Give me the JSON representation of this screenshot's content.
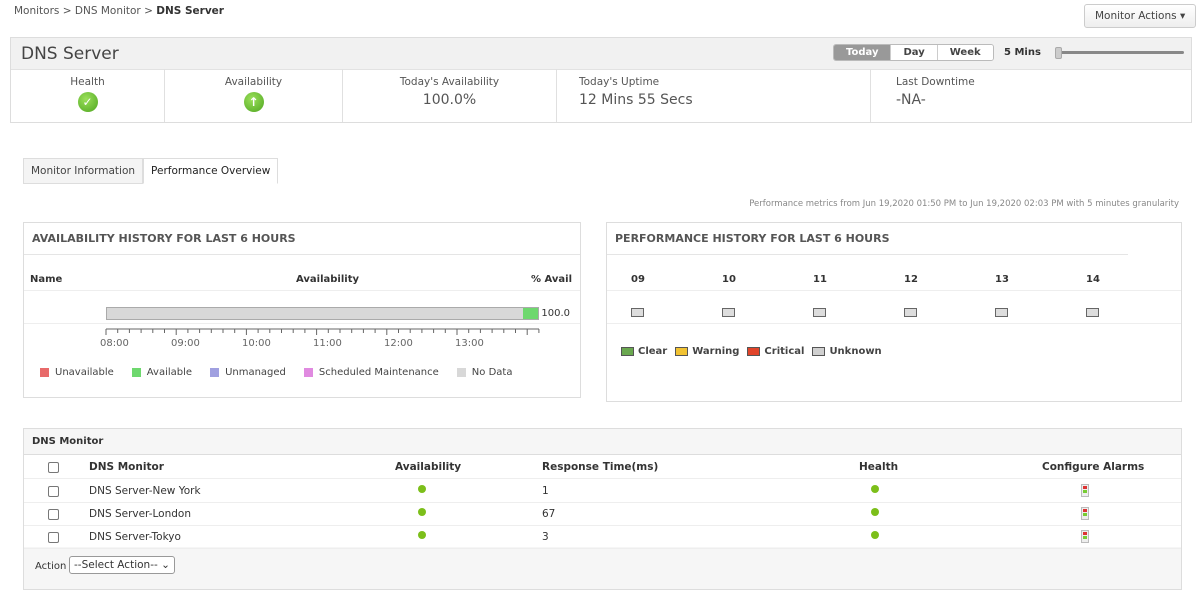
{
  "breadcrumb": {
    "items": [
      "Monitors",
      "DNS Monitor"
    ],
    "current": "DNS Server",
    "sep": ">"
  },
  "monitor_actions": "Monitor Actions ▾",
  "header": {
    "title": "DNS Server",
    "periods": [
      "Today",
      "Day",
      "Week"
    ],
    "selected_period": "Today",
    "interval": "5 Mins",
    "slider_value": 0
  },
  "stats": {
    "health_label": "Health",
    "availability_label": "Availability",
    "todays_availability_label": "Today's Availability",
    "todays_availability": "100.0%",
    "uptime_label": "Today's Uptime",
    "uptime": "12 Mins 55 Secs",
    "last_downtime_label": "Last Downtime",
    "last_downtime": "-NA-"
  },
  "tabs": [
    "Monitor Information",
    "Performance Overview"
  ],
  "active_tab": "Performance Overview",
  "metrics_note": "Performance metrics from Jun 19,2020 01:50 PM to Jun 19,2020 02:03 PM with 5 minutes granularity",
  "availability_history": {
    "title": "AVAILABILITY HISTORY FOR LAST 6 HOURS",
    "col_name": "Name",
    "col_avail": "Availability",
    "col_pct": "% Avail",
    "pct": "100.0",
    "ticks": [
      "08:00",
      "09:00",
      "10:00",
      "11:00",
      "12:00",
      "13:00"
    ],
    "available_fraction": 0.035,
    "legend": [
      {
        "label": "Unavailable",
        "color": "#e86a6a"
      },
      {
        "label": "Available",
        "color": "#6ed86e"
      },
      {
        "label": "Unmanaged",
        "color": "#a0a0e0"
      },
      {
        "label": "Scheduled Maintenance",
        "color": "#e08ae0"
      },
      {
        "label": "No Data",
        "color": "#d8d8d8"
      }
    ]
  },
  "performance_history": {
    "title": "PERFORMANCE HISTORY FOR LAST 6 HOURS",
    "hours": [
      "09",
      "10",
      "11",
      "12",
      "13",
      "14"
    ],
    "legend": [
      {
        "label": "Clear",
        "color": "#6aa84f"
      },
      {
        "label": "Warning",
        "color": "#f1c232"
      },
      {
        "label": "Critical",
        "color": "#e0442a"
      },
      {
        "label": "Unknown",
        "color": "#d0d0d0"
      }
    ]
  },
  "dns_table": {
    "title": "DNS Monitor",
    "columns": [
      "DNS Monitor",
      "Availability",
      "Response Time(ms)",
      "Health",
      "Configure Alarms"
    ],
    "rows": [
      {
        "name": "DNS Server-New York",
        "response": "1"
      },
      {
        "name": "DNS Server-London",
        "response": "67"
      },
      {
        "name": "DNS Server-Tokyo",
        "response": "3"
      }
    ],
    "action_label": "Action",
    "action_select": "--Select Action--"
  }
}
